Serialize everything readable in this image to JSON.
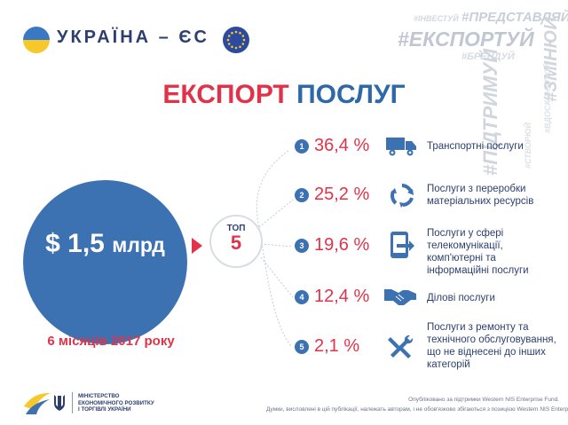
{
  "header": {
    "brand": "УКРАЇНА – ЄС",
    "hashtags": {
      "invest": "#ІНВЕСТУЙ",
      "present": "#ПРЕДСТАВЛЯЙ",
      "export": "#ЕКСПОРТУЙ",
      "brand": "#БРЕНДУЙ",
      "support": "#ПІДТРИМУЙ",
      "change": "#ЗМІНЮЙ",
      "create": "#СТВОРЮЙ",
      "improve": "#ВДОСКОНАЛЮЙ"
    }
  },
  "title": {
    "part1": "ЕКСПОРТ",
    "part2": "ПОСЛУГ"
  },
  "summary": {
    "amount": "$ 1,5",
    "unit": "млрд",
    "period": "6 місяців 2017 року"
  },
  "top": {
    "label": "ТОП",
    "number": "5"
  },
  "items": [
    {
      "rank": "1",
      "percent": "36,4 %",
      "icon": "truck-icon",
      "label": "Транспортні послуги"
    },
    {
      "rank": "2",
      "percent": "25,2 %",
      "icon": "recycle-icon",
      "label": "Послуги з переробки матеріальних ресурсів"
    },
    {
      "rank": "3",
      "percent": "19,6 %",
      "icon": "device-icon",
      "label": "Послуги у сфері телекомунікації, комп'ютерні та інформаційні послуги"
    },
    {
      "rank": "4",
      "percent": "12,4 %",
      "icon": "handshake-icon",
      "label": "Ділові послуги"
    },
    {
      "rank": "5",
      "percent": "2,1 %",
      "icon": "tools-icon",
      "label": "Послуги з ремонту та технічного обслуговування, що не віднесені до інших категорій"
    }
  ],
  "footer": {
    "ministry": [
      "МІНІСТЕРСТВО",
      "ЕКОНОМІЧНОГО РОЗВИТКУ",
      "І ТОРГІВЛІ УКРАЇНИ"
    ],
    "note1": "Опубліковано за підтримки Western NIS Enterprise Fund.",
    "note2": "Думки, висловлені в цій публікації, належать авторам, і не обов'язково збігаються з позицією Western NIS Enterprise Fund."
  },
  "colors": {
    "accent_red": "#e2324a",
    "brand_blue": "#3d72b2",
    "navy": "#2d3f6e"
  }
}
